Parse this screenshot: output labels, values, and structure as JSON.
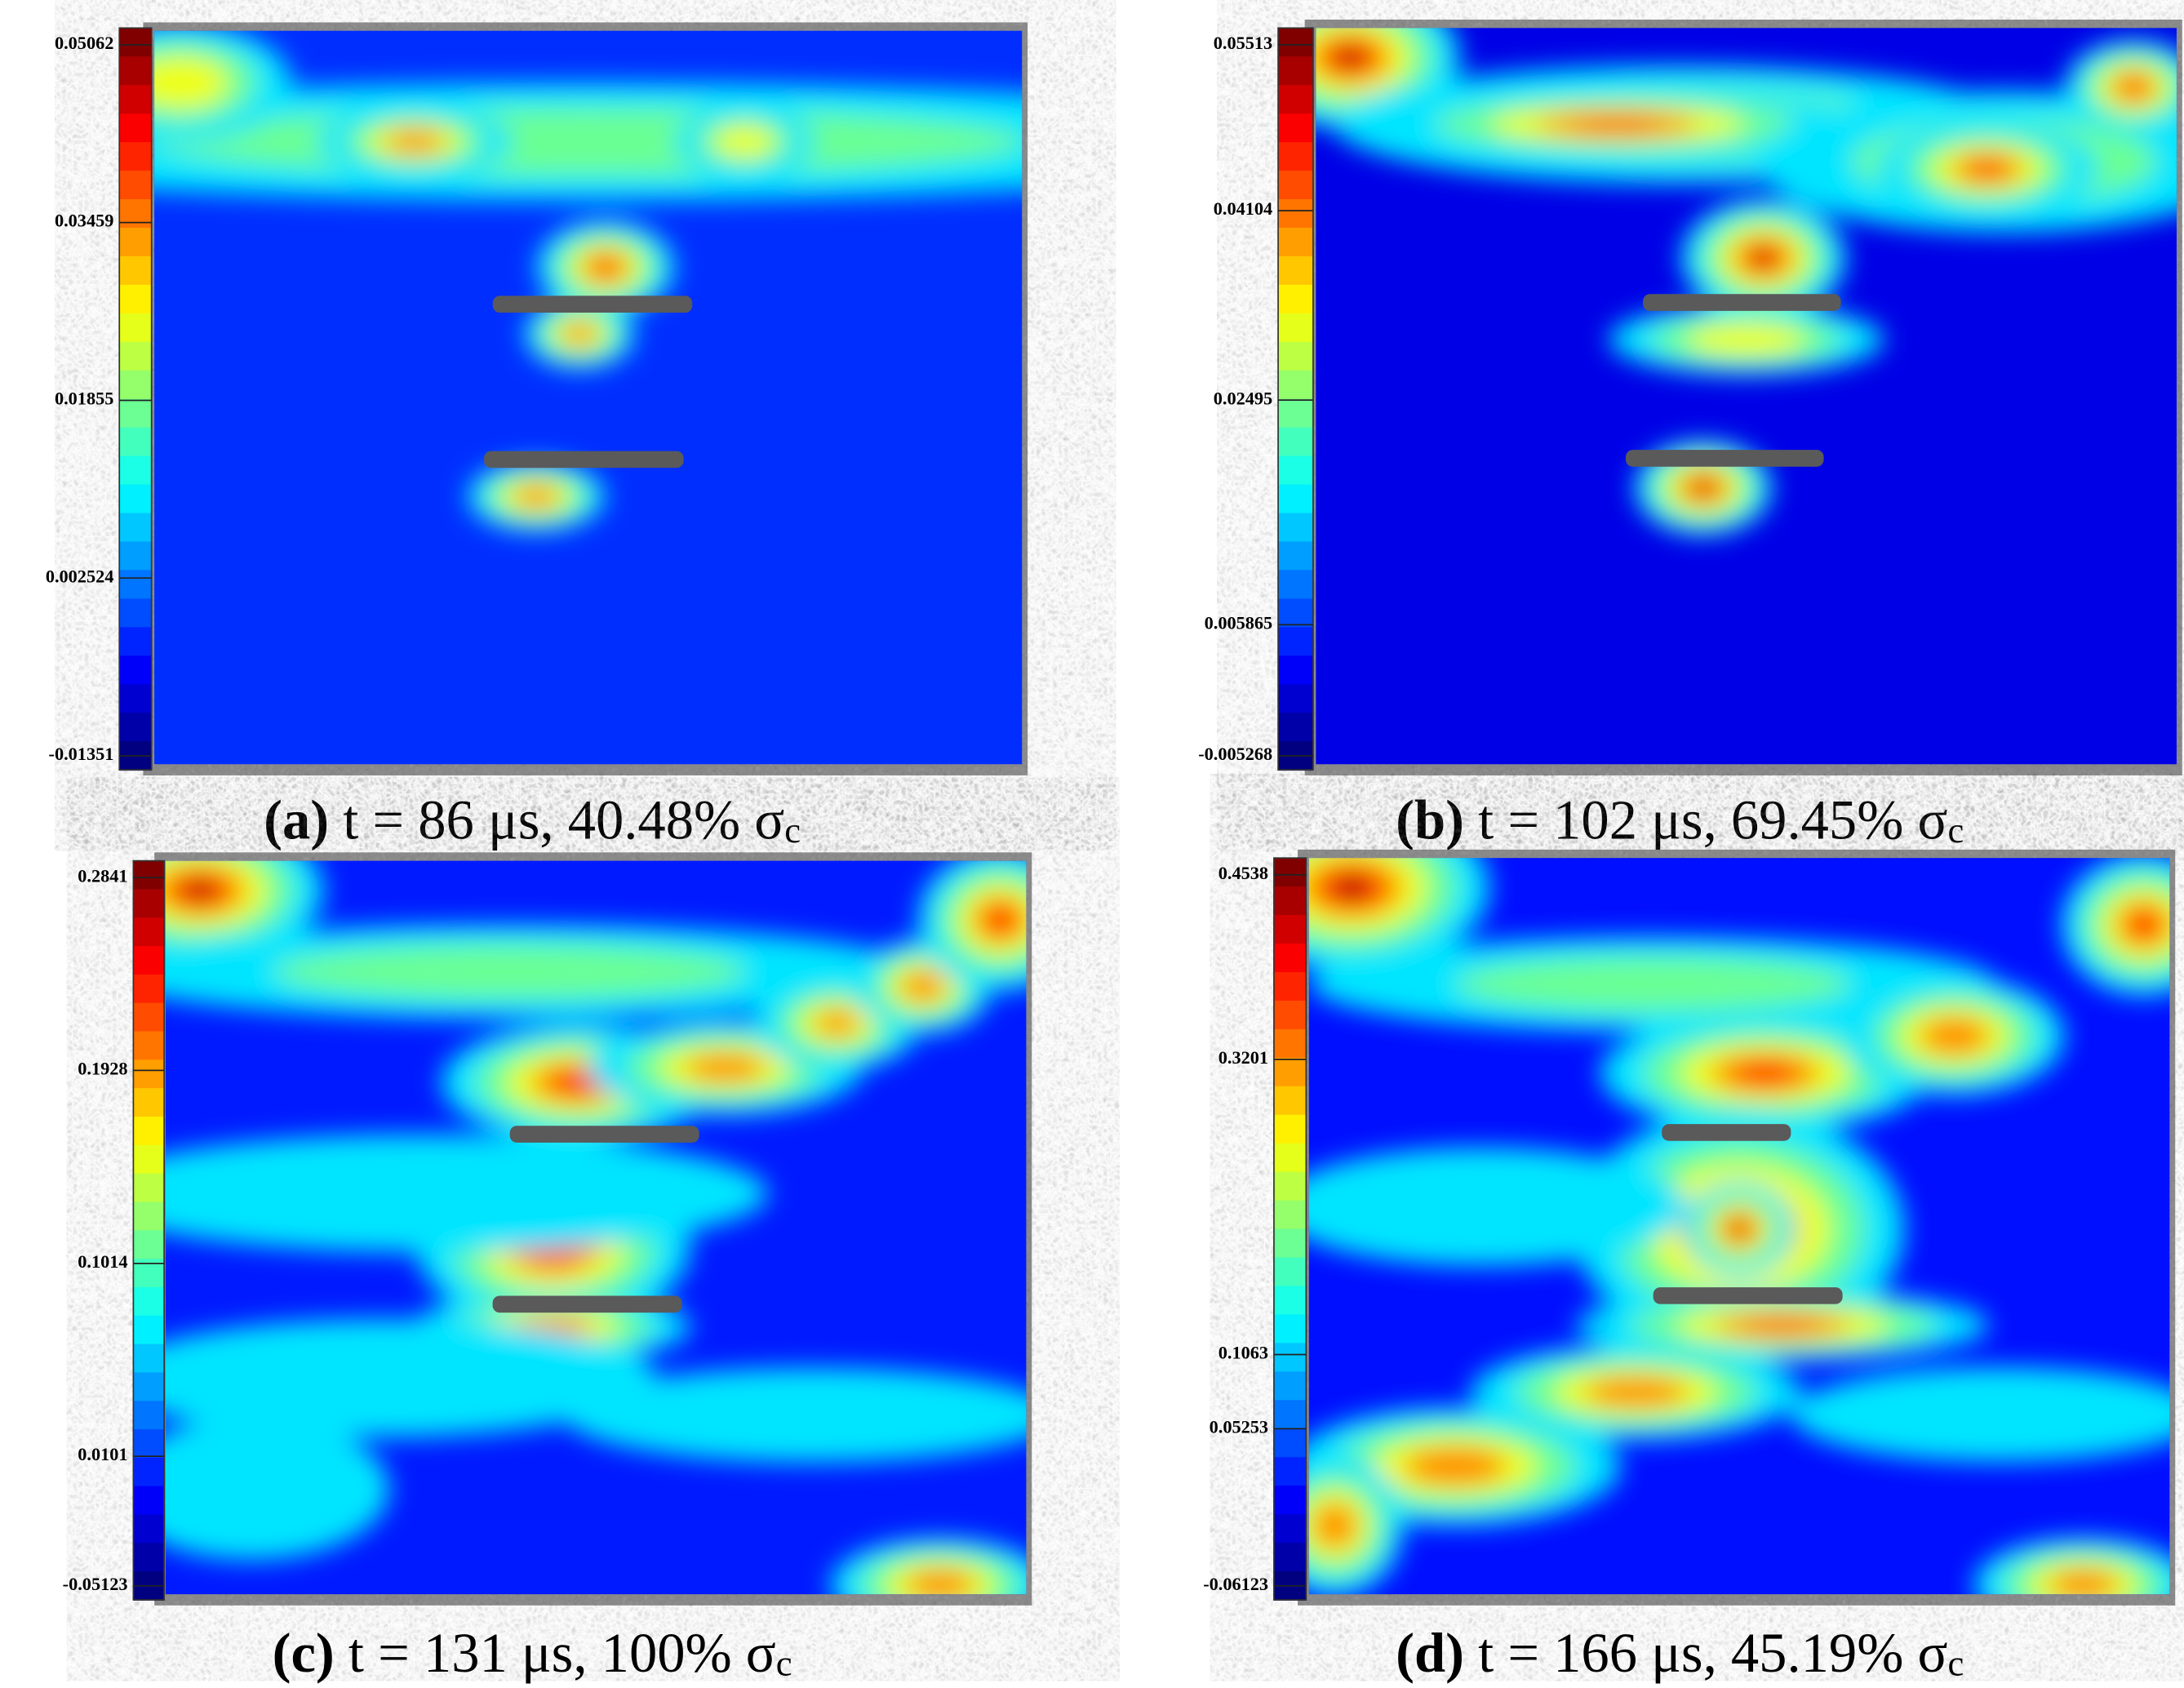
{
  "panels": [
    {
      "label": "(a)",
      "caption": " t = 86 μs, 40.48% σ",
      "subscript": "c",
      "ticks": [
        0.05062,
        0.03459,
        0.01855,
        0.002524,
        -0.01351
      ]
    },
    {
      "label": "(b)",
      "caption": " t = 102 μs, 69.45% σ",
      "subscript": "c",
      "ticks": [
        0.05513,
        0.04104,
        0.02495,
        0.005865,
        -0.005268
      ]
    },
    {
      "label": "(c)",
      "caption": " t = 131 μs, 100% σ",
      "subscript": "c",
      "ticks": [
        0.2841,
        0.1928,
        0.1014,
        0.0101,
        -0.05123
      ]
    },
    {
      "label": "(d)",
      "caption": " t = 166 μs, 45.19% σ",
      "subscript": "c",
      "ticks": [
        0.4538,
        0.3201,
        0.1063,
        0.05253,
        -0.06123
      ]
    }
  ]
}
